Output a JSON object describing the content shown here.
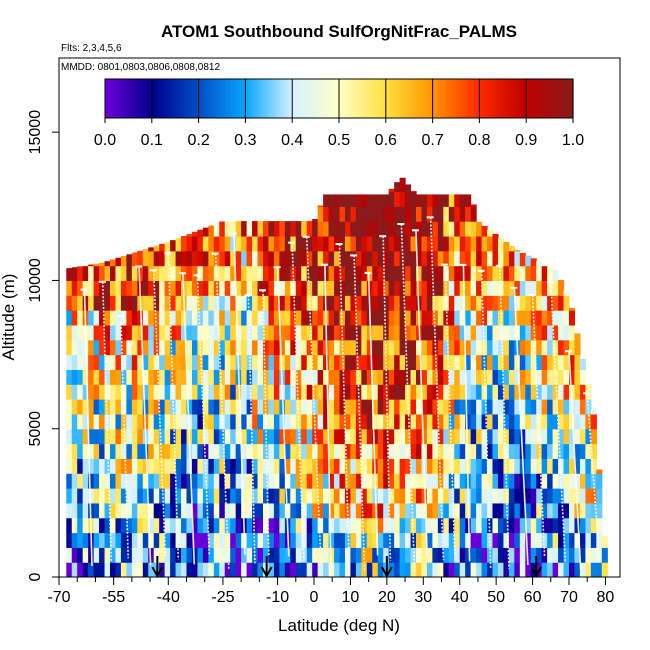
{
  "chart_data": {
    "type": "heatmap",
    "title": "ATOM1 Southbound SulfOrgNitFrac_PALMS",
    "flights_label": "Flts: 2,3,4,5,6",
    "dates_label": "MMDD: 0801,0803,0806,0808,0812",
    "xlabel": "Latitude (deg N)",
    "ylabel": "Altitude (m)",
    "xlim": [
      -70,
      84
    ],
    "ylim": [
      0,
      17500
    ],
    "x_ticks": [
      -70,
      -55,
      -40,
      -25,
      -10,
      0,
      10,
      20,
      30,
      40,
      50,
      60,
      70,
      80
    ],
    "x_tick_labels": [
      "-70",
      "-55",
      "-40",
      "-25",
      "-10",
      "0",
      "10",
      "20",
      "30",
      "40",
      "50",
      "60",
      "70",
      "80"
    ],
    "x_minor_ticks": [
      -65,
      -60,
      -50,
      -45,
      -35,
      -30,
      -20,
      -15,
      -5,
      5,
      15,
      25,
      35,
      45,
      55,
      65,
      75
    ],
    "y_ticks": [
      0,
      5000,
      10000,
      15000
    ],
    "y_tick_labels": [
      "0",
      "5000",
      "10000",
      "15000"
    ],
    "colorbar": {
      "min": 0.0,
      "max": 1.0,
      "tick_values": [
        0.0,
        0.1,
        0.2,
        0.3,
        0.4,
        0.5,
        0.6,
        0.7,
        0.8,
        0.9,
        1.0
      ],
      "tick_labels": [
        "0.0",
        "0.1",
        "0.2",
        "0.3",
        "0.4",
        "0.5",
        "0.6",
        "0.7",
        "0.8",
        "0.9",
        "1.0"
      ],
      "colors": [
        "#6a00d8",
        "#00008b",
        "#0050c8",
        "#0aa6ff",
        "#d6f2ff",
        "#ffffc8",
        "#ffe040",
        "#ff9600",
        "#ff2a00",
        "#c00000",
        "#8b1a1a"
      ]
    },
    "flight_date_markers_lat": [
      -43,
      -13,
      20,
      61
    ],
    "profiles_lat": [
      -63,
      -58,
      -53,
      -48,
      -44,
      -40,
      -36,
      -32,
      -27,
      -22,
      -18,
      -14,
      -10,
      -6,
      -2,
      3,
      7,
      11,
      15,
      19,
      24,
      28,
      32,
      36,
      41,
      46,
      51,
      55,
      60,
      65,
      70,
      75
    ],
    "max_altitude_m": [
      {
        "lat": -68,
        "alt": 10400
      },
      {
        "lat": -58,
        "alt": 10600
      },
      {
        "lat": -40,
        "alt": 11300
      },
      {
        "lat": -25,
        "alt": 12000
      },
      {
        "lat": 0,
        "alt": 12000
      },
      {
        "lat": 3,
        "alt": 12900
      },
      {
        "lat": 20,
        "alt": 12900
      },
      {
        "lat": 24,
        "alt": 13500
      },
      {
        "lat": 28,
        "alt": 12900
      },
      {
        "lat": 43,
        "alt": 12900
      },
      {
        "lat": 45,
        "alt": 12000
      },
      {
        "lat": 56,
        "alt": 11000
      },
      {
        "lat": 66,
        "alt": 10400
      },
      {
        "lat": 70,
        "alt": 9500
      },
      {
        "lat": 77,
        "alt": 5500
      },
      {
        "lat": 80,
        "alt": 1000
      }
    ],
    "grid": false,
    "legend": "top colorbar"
  }
}
